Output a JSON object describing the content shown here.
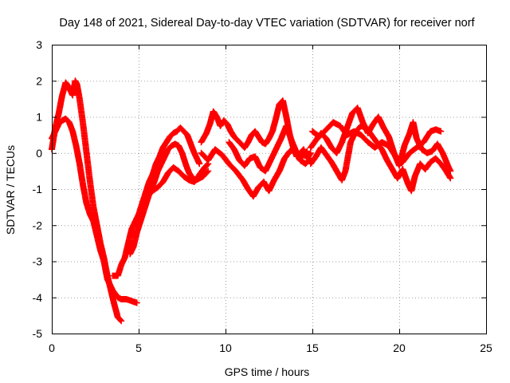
{
  "chart_data": {
    "type": "scatter",
    "title": "Day 148 of 2021, Sidereal Day-to-day VTEC variation (SDTVAR) for receiver norf",
    "xlabel": "GPS time / hours",
    "ylabel": "SDTVAR / TECUs",
    "xlim": [
      0,
      25
    ],
    "ylim": [
      -5,
      3
    ],
    "xticks": [
      "0",
      "5",
      "10",
      "15",
      "20",
      "25"
    ],
    "yticks": [
      "-5",
      "-4",
      "-3",
      "-2",
      "-1",
      "0",
      "1",
      "2",
      "3"
    ],
    "grid": true,
    "marker": "plus",
    "series": [
      {
        "name": "SDTVAR",
        "color": "#ff0000",
        "segments": [
          [
            [
              0.0,
              0.1
            ],
            [
              0.2,
              0.7
            ],
            [
              0.4,
              1.1
            ],
            [
              0.6,
              1.6
            ],
            [
              0.8,
              1.95
            ],
            [
              1.0,
              1.8
            ],
            [
              1.2,
              1.6
            ],
            [
              1.35,
              2.0
            ],
            [
              1.45,
              1.9
            ],
            [
              1.6,
              1.5
            ],
            [
              1.8,
              0.8
            ],
            [
              2.0,
              0.0
            ],
            [
              2.2,
              -0.8
            ],
            [
              2.4,
              -1.5
            ],
            [
              2.6,
              -2.0
            ],
            [
              2.8,
              -2.5
            ],
            [
              3.0,
              -2.9
            ],
            [
              3.2,
              -3.4
            ],
            [
              3.4,
              -3.8
            ],
            [
              3.6,
              -4.2
            ],
            [
              3.8,
              -4.55
            ],
            [
              4.0,
              -4.65
            ]
          ],
          [
            [
              0.0,
              0.4
            ],
            [
              0.2,
              0.6
            ],
            [
              0.4,
              0.8
            ],
            [
              0.6,
              0.9
            ],
            [
              0.8,
              0.95
            ],
            [
              1.0,
              0.85
            ],
            [
              1.2,
              0.6
            ],
            [
              1.4,
              0.2
            ],
            [
              1.6,
              -0.3
            ],
            [
              1.8,
              -0.9
            ],
            [
              2.0,
              -1.4
            ],
            [
              2.2,
              -1.7
            ],
            [
              2.4,
              -1.9
            ],
            [
              2.6,
              -2.3
            ],
            [
              2.8,
              -2.7
            ],
            [
              3.0,
              -3.0
            ],
            [
              3.2,
              -3.5
            ],
            [
              3.5,
              -3.8
            ],
            [
              3.8,
              -4.0
            ],
            [
              4.0,
              -4.05
            ],
            [
              4.3,
              -4.05
            ],
            [
              4.6,
              -4.1
            ],
            [
              4.9,
              -4.15
            ]
          ],
          [
            [
              3.5,
              -3.4
            ],
            [
              3.8,
              -3.4
            ],
            [
              4.0,
              -3.1
            ],
            [
              4.2,
              -2.9
            ],
            [
              4.4,
              -2.5
            ],
            [
              4.6,
              -2.1
            ],
            [
              4.8,
              -1.9
            ],
            [
              5.0,
              -1.7
            ],
            [
              5.2,
              -1.4
            ],
            [
              5.4,
              -1.1
            ],
            [
              5.6,
              -0.8
            ],
            [
              5.8,
              -0.6
            ],
            [
              6.0,
              -0.3
            ],
            [
              6.2,
              -0.1
            ],
            [
              6.4,
              0.15
            ],
            [
              6.6,
              0.3
            ],
            [
              6.8,
              0.45
            ],
            [
              7.0,
              0.55
            ],
            [
              7.2,
              0.6
            ],
            [
              7.4,
              0.7
            ],
            [
              7.6,
              0.6
            ],
            [
              7.8,
              0.5
            ],
            [
              8.0,
              0.25
            ],
            [
              8.2,
              0.0
            ],
            [
              8.4,
              -0.2
            ],
            [
              8.5,
              -0.3
            ]
          ],
          [
            [
              4.5,
              -2.8
            ],
            [
              4.7,
              -2.6
            ],
            [
              4.9,
              -2.2
            ],
            [
              5.1,
              -1.9
            ],
            [
              5.3,
              -1.6
            ],
            [
              5.5,
              -1.3
            ],
            [
              5.7,
              -1.0
            ],
            [
              5.9,
              -0.8
            ],
            [
              6.1,
              -0.5
            ],
            [
              6.3,
              -0.3
            ],
            [
              6.5,
              -0.1
            ],
            [
              6.7,
              0.1
            ],
            [
              6.9,
              0.2
            ],
            [
              7.1,
              0.25
            ],
            [
              7.3,
              0.2
            ],
            [
              7.5,
              0.0
            ],
            [
              7.7,
              -0.3
            ],
            [
              7.9,
              -0.55
            ],
            [
              8.1,
              -0.7
            ],
            [
              8.3,
              -0.75
            ],
            [
              8.5,
              -0.7
            ],
            [
              8.7,
              -0.65
            ],
            [
              9.0,
              -0.5
            ]
          ],
          [
            [
              5.5,
              -1.2
            ],
            [
              5.8,
              -1.05
            ],
            [
              6.1,
              -0.95
            ],
            [
              6.4,
              -0.8
            ],
            [
              6.7,
              -0.55
            ],
            [
              7.0,
              -0.4
            ],
            [
              7.3,
              -0.5
            ],
            [
              7.6,
              -0.65
            ],
            [
              7.9,
              -0.75
            ],
            [
              8.2,
              -0.8
            ],
            [
              8.5,
              -0.6
            ],
            [
              8.8,
              -0.4
            ],
            [
              9.0,
              -0.3
            ]
          ],
          [
            [
              8.6,
              0.3
            ],
            [
              8.9,
              0.55
            ],
            [
              9.1,
              0.8
            ],
            [
              9.3,
              1.15
            ],
            [
              9.5,
              1.0
            ],
            [
              9.7,
              0.75
            ],
            [
              9.9,
              0.9
            ],
            [
              10.1,
              0.8
            ],
            [
              10.3,
              0.6
            ],
            [
              10.5,
              0.45
            ],
            [
              10.7,
              0.35
            ],
            [
              10.9,
              0.25
            ],
            [
              11.1,
              0.15
            ],
            [
              11.3,
              0.3
            ],
            [
              11.5,
              0.5
            ],
            [
              11.7,
              0.6
            ],
            [
              11.9,
              0.45
            ],
            [
              12.1,
              0.3
            ],
            [
              12.3,
              0.25
            ],
            [
              12.5,
              0.4
            ],
            [
              12.7,
              0.6
            ],
            [
              12.9,
              0.95
            ],
            [
              13.1,
              1.35
            ],
            [
              13.3,
              1.45
            ],
            [
              13.5,
              1.0
            ],
            [
              13.7,
              0.5
            ],
            [
              13.9,
              0.15
            ],
            [
              14.1,
              -0.1
            ],
            [
              14.3,
              0.0
            ],
            [
              14.5,
              0.1
            ],
            [
              14.7,
              -0.15
            ],
            [
              14.9,
              0.0
            ]
          ],
          [
            [
              8.6,
              0.0
            ],
            [
              9.0,
              -0.2
            ],
            [
              9.4,
              0.1
            ],
            [
              9.8,
              -0.05
            ],
            [
              10.2,
              -0.3
            ],
            [
              10.6,
              -0.5
            ],
            [
              11.0,
              -0.75
            ],
            [
              11.3,
              -1.0
            ],
            [
              11.6,
              -1.2
            ],
            [
              11.9,
              -0.95
            ],
            [
              12.2,
              -0.8
            ],
            [
              12.5,
              -1.05
            ],
            [
              12.8,
              -0.75
            ],
            [
              13.1,
              -0.5
            ],
            [
              13.4,
              -0.15
            ],
            [
              13.7,
              0.05
            ],
            [
              14.0,
              0.1
            ],
            [
              14.3,
              -0.2
            ],
            [
              14.6,
              -0.3
            ],
            [
              14.9,
              -0.15
            ]
          ],
          [
            [
              10.2,
              0.3
            ],
            [
              10.5,
              0.1
            ],
            [
              10.8,
              -0.2
            ],
            [
              11.1,
              -0.35
            ],
            [
              11.4,
              -0.15
            ],
            [
              11.7,
              -0.1
            ],
            [
              12.0,
              -0.4
            ],
            [
              12.3,
              -0.5
            ],
            [
              12.6,
              -0.2
            ],
            [
              12.9,
              0.1
            ],
            [
              13.2,
              0.4
            ],
            [
              13.5,
              0.75
            ],
            [
              13.8,
              0.35
            ],
            [
              14.1,
              0.0
            ],
            [
              14.4,
              -0.1
            ],
            [
              14.7,
              0.05
            ]
          ],
          [
            [
              14.9,
              0.15
            ],
            [
              15.2,
              0.35
            ],
            [
              15.5,
              0.55
            ],
            [
              15.8,
              0.4
            ],
            [
              16.1,
              0.15
            ],
            [
              16.4,
              0.0
            ],
            [
              16.7,
              0.3
            ],
            [
              17.0,
              0.7
            ],
            [
              17.3,
              1.1
            ],
            [
              17.6,
              1.25
            ],
            [
              17.9,
              0.85
            ],
            [
              18.2,
              0.55
            ],
            [
              18.5,
              0.8
            ],
            [
              18.8,
              1.0
            ],
            [
              19.1,
              0.7
            ],
            [
              19.4,
              0.45
            ],
            [
              19.7,
              0.0
            ],
            [
              20.0,
              -0.35
            ],
            [
              20.3,
              0.2
            ],
            [
              20.6,
              0.55
            ],
            [
              20.8,
              0.85
            ],
            [
              21.0,
              0.4
            ],
            [
              21.3,
              0.1
            ],
            [
              21.6,
              0.0
            ],
            [
              21.9,
              0.05
            ],
            [
              22.2,
              0.25
            ],
            [
              22.5,
              0.0
            ],
            [
              22.8,
              -0.35
            ],
            [
              22.95,
              -0.5
            ]
          ],
          [
            [
              14.9,
              -0.3
            ],
            [
              15.2,
              -0.1
            ],
            [
              15.5,
              0.15
            ],
            [
              15.8,
              -0.05
            ],
            [
              16.1,
              -0.25
            ],
            [
              16.4,
              -0.5
            ],
            [
              16.7,
              -0.75
            ],
            [
              16.9,
              -0.5
            ],
            [
              17.2,
              0.3
            ],
            [
              17.5,
              0.6
            ],
            [
              17.8,
              0.75
            ],
            [
              18.1,
              0.7
            ],
            [
              18.4,
              0.5
            ],
            [
              18.7,
              0.3
            ],
            [
              19.0,
              0.1
            ],
            [
              19.3,
              -0.2
            ],
            [
              19.6,
              -0.45
            ],
            [
              19.9,
              -0.7
            ],
            [
              20.2,
              -0.45
            ],
            [
              20.5,
              -0.85
            ],
            [
              20.7,
              -1.05
            ],
            [
              20.9,
              -0.65
            ],
            [
              21.2,
              -0.3
            ],
            [
              21.5,
              -0.45
            ],
            [
              21.8,
              -0.25
            ],
            [
              22.1,
              -0.15
            ],
            [
              22.4,
              -0.3
            ],
            [
              22.7,
              -0.5
            ],
            [
              22.95,
              -0.7
            ]
          ],
          [
            [
              15.0,
              0.6
            ],
            [
              15.4,
              0.45
            ],
            [
              15.8,
              0.65
            ],
            [
              16.2,
              0.85
            ],
            [
              16.6,
              0.75
            ],
            [
              17.0,
              0.5
            ],
            [
              17.4,
              0.6
            ],
            [
              17.8,
              0.5
            ],
            [
              18.2,
              0.3
            ],
            [
              18.6,
              0.15
            ],
            [
              19.0,
              0.3
            ],
            [
              19.4,
              0.2
            ],
            [
              19.8,
              -0.1
            ],
            [
              20.2,
              -0.25
            ],
            [
              20.6,
              0.0
            ],
            [
              21.0,
              0.15
            ],
            [
              21.4,
              0.3
            ],
            [
              21.8,
              0.6
            ],
            [
              22.1,
              0.65
            ],
            [
              22.4,
              0.6
            ]
          ]
        ]
      }
    ]
  }
}
